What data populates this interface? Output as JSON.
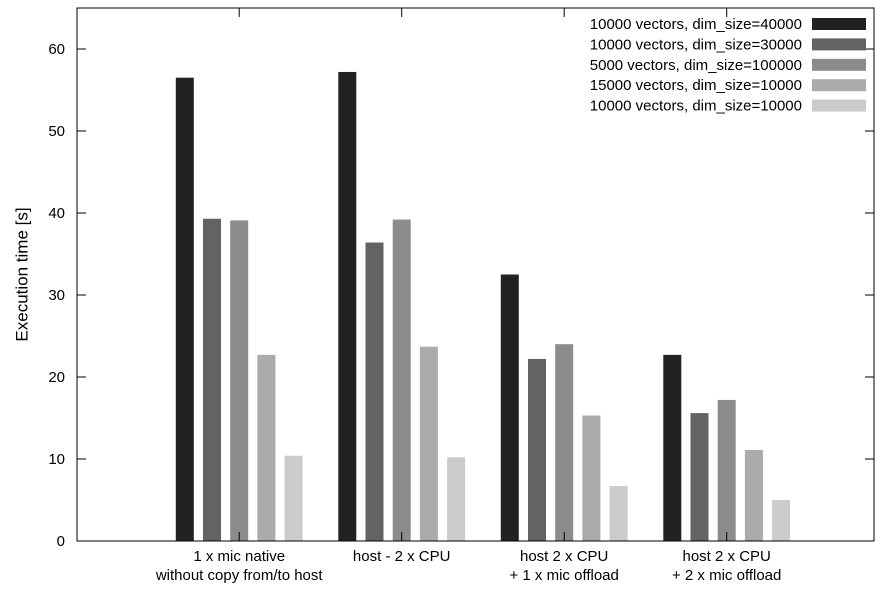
{
  "chart_data": {
    "type": "bar",
    "title": "",
    "xlabel": "",
    "ylabel": "Execution time [s]",
    "ylim": [
      0,
      65
    ],
    "yticks": [
      0,
      10,
      20,
      30,
      40,
      50,
      60
    ],
    "grid": false,
    "legend_position": "top-right",
    "categories": [
      [
        "1 x mic native",
        "without copy from/to host"
      ],
      [
        "host - 2 x CPU"
      ],
      [
        "host 2 x CPU",
        "+ 1 x mic offload"
      ],
      [
        "host 2 x CPU",
        "+ 2 x mic offload"
      ]
    ],
    "series": [
      {
        "name": "10000 vectors, dim_size=40000",
        "color": "#222222",
        "values": [
          56.5,
          57.2,
          32.5,
          22.7
        ]
      },
      {
        "name": "10000 vectors, dim_size=30000",
        "color": "#636363",
        "values": [
          39.3,
          36.4,
          22.2,
          15.6
        ]
      },
      {
        "name": "5000 vectors, dim_size=100000",
        "color": "#8c8c8c",
        "values": [
          39.1,
          39.2,
          24.0,
          17.2
        ]
      },
      {
        "name": "15000 vectors, dim_size=10000",
        "color": "#ababab",
        "values": [
          22.7,
          23.7,
          15.3,
          11.1
        ]
      },
      {
        "name": "10000 vectors, dim_size=10000",
        "color": "#cbcbcb",
        "values": [
          10.4,
          10.2,
          6.7,
          5.0
        ]
      }
    ]
  }
}
